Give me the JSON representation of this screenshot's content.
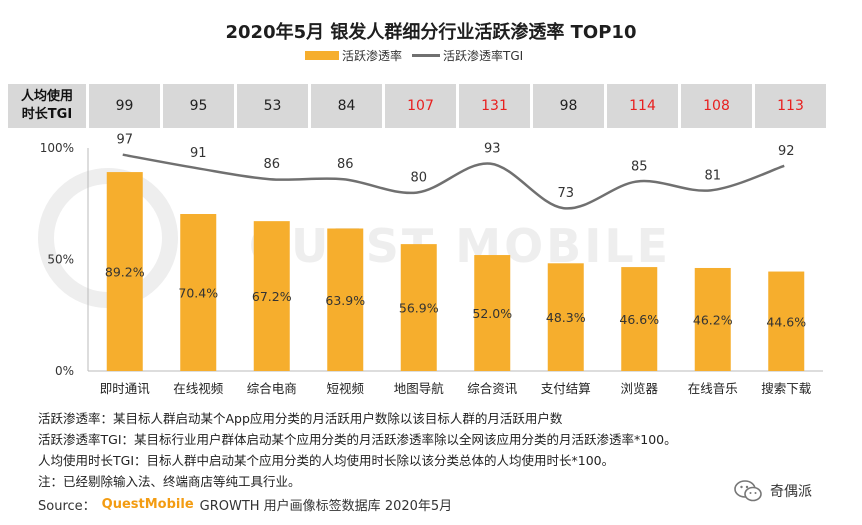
{
  "title": "2020年5月 银发人群细分行业活跃渗透率 TOP10",
  "legend": {
    "bar_label": "活跃渗透率",
    "line_label": "活跃渗透率TGI"
  },
  "tgi_row": {
    "header_line1": "人均使用",
    "header_line2": "时长TGI",
    "highlight_color": "#e8201f",
    "values": [
      "99",
      "95",
      "53",
      "84",
      "107",
      "131",
      "98",
      "114",
      "108",
      "113"
    ],
    "highlight": [
      false,
      false,
      false,
      false,
      true,
      true,
      false,
      true,
      true,
      true
    ]
  },
  "chart_data": {
    "type": "bar",
    "categories": [
      "即时通讯",
      "在线视频",
      "综合电商",
      "短视频",
      "地图导航",
      "综合资讯",
      "支付结算",
      "浏览器",
      "在线音乐",
      "搜索下载"
    ],
    "series": [
      {
        "name": "活跃渗透率",
        "type": "bar",
        "color": "#F6AE2D",
        "values": [
          89.2,
          70.4,
          67.2,
          63.9,
          56.9,
          52.0,
          48.3,
          46.6,
          46.2,
          44.6
        ],
        "labels": [
          "89.2%",
          "70.4%",
          "67.2%",
          "63.9%",
          "56.9%",
          "52.0%",
          "48.3%",
          "46.6%",
          "46.2%",
          "44.6%"
        ]
      },
      {
        "name": "活跃渗透率TGI",
        "type": "line",
        "color": "#707070",
        "values": [
          97,
          91,
          86,
          86,
          80,
          93,
          73,
          85,
          81,
          92
        ],
        "labels": [
          "97",
          "91",
          "86",
          "86",
          "80",
          "93",
          "73",
          "85",
          "81",
          "92"
        ]
      }
    ],
    "y_ticks": [
      "100%",
      "50%",
      "0%"
    ],
    "ylim": [
      0,
      100
    ],
    "grid": false,
    "legend_position": "top-center"
  },
  "watermark": {
    "text": "QUEST MOBILE",
    "color": "#eeeeee"
  },
  "notes": [
    "活跃渗透率：某目标人群启动某个App应用分类的月活跃用户数除以该目标人群的月活跃用户数",
    "活跃渗透率TGI：某目标行业用户群体启动某个应用分类的月活跃渗透率除以全网该应用分类的月活跃渗透率*100。",
    "人均使用时长TGI：目标人群中启动某个应用分类的人均使用时长除以该分类总体的人均使用时长*100。",
    "注：已经剔除输入法、终端商店等纯工具行业。"
  ],
  "source": {
    "prefix": "Source：",
    "brand": "QuestMobile",
    "suffix": "GROWTH 用户画像标签数据库 2020年5月"
  },
  "wechat": {
    "account": "奇偶派"
  }
}
